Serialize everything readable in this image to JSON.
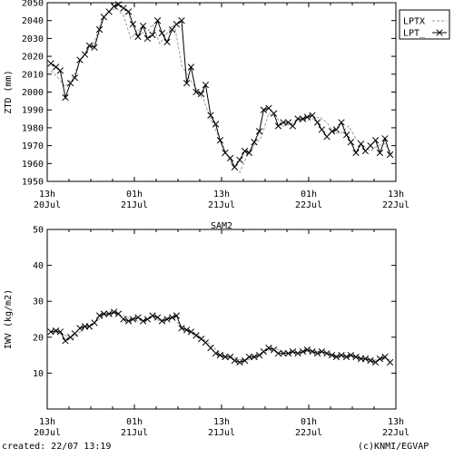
{
  "footer": {
    "created": "created: 22/07 13:19",
    "credit": "(c)KNMI/EGVAP"
  },
  "chart_data": [
    {
      "type": "line",
      "title": "",
      "xlabel": "",
      "ylabel": "ZTD (mm)",
      "xlim": [
        0,
        48
      ],
      "ylim": [
        1950,
        2050
      ],
      "yticks": [
        1950,
        1960,
        1970,
        1980,
        1990,
        2000,
        2010,
        2020,
        2030,
        2040,
        2050
      ],
      "xticks": [
        {
          "x": 0,
          "top": "13h",
          "bottom": "20Jul"
        },
        {
          "x": 12,
          "top": "01h",
          "bottom": "21Jul"
        },
        {
          "x": 24,
          "top": "13h",
          "bottom": "21Jul"
        },
        {
          "x": 36,
          "top": "01h",
          "bottom": "22Jul"
        },
        {
          "x": 48,
          "top": "13h",
          "bottom": "22Jul"
        }
      ],
      "legend": "top-right",
      "series": [
        {
          "name": "LPTX",
          "style": "dashed",
          "x": [
            0.5,
            1.5,
            2.5,
            3.5,
            4.5,
            5.5,
            6.5,
            7.5,
            8.5,
            9.5,
            10.5,
            11.5,
            12.5,
            13.5,
            14.5,
            15.5,
            16.5,
            17.5,
            18.5,
            19.5,
            20.5,
            21.5,
            22.5,
            23.5,
            24.5,
            25.5,
            26.5,
            27.5,
            28.5,
            29.5,
            30.5,
            31.5,
            32.5,
            33.5,
            34.5,
            35.5,
            36.5,
            37.5,
            38.5,
            39.5,
            40.5,
            41.5,
            42.5,
            43.5,
            44.5,
            45.5,
            46.5,
            47.5
          ],
          "values": [
            2012,
            2008,
            2003,
            2008,
            2017,
            2023,
            2028,
            2040,
            2045,
            2047,
            2043,
            2030,
            2035,
            2032,
            2038,
            2027,
            2033,
            2038,
            2015,
            2008,
            2002,
            1996,
            1985,
            1976,
            1967,
            1959,
            1955,
            1964,
            1970,
            1975,
            1988,
            1986,
            1981,
            1982,
            1985,
            1984,
            1985,
            1986,
            1983,
            1977,
            1977,
            1981,
            1974,
            1970,
            1967,
            1970,
            1971,
            1965
          ]
        },
        {
          "name": "LPT_",
          "style": "solid-x",
          "x": [
            0.5,
            1.2,
            1.8,
            2.5,
            3.2,
            3.8,
            4.5,
            5.2,
            5.8,
            6.5,
            7.2,
            7.8,
            8.5,
            9.2,
            9.8,
            10.5,
            11.2,
            11.8,
            12.5,
            13.2,
            13.8,
            14.5,
            15.2,
            15.8,
            16.5,
            17.2,
            17.8,
            18.5,
            19.2,
            19.8,
            20.5,
            21.2,
            21.8,
            22.5,
            23.2,
            23.8,
            24.5,
            25.2,
            25.8,
            26.5,
            27.2,
            27.8,
            28.5,
            29.2,
            29.8,
            30.5,
            31.2,
            31.8,
            32.5,
            33.2,
            33.8,
            34.5,
            35.2,
            35.8,
            36.5,
            37.2,
            37.8,
            38.5,
            39.2,
            39.8,
            40.5,
            41.2,
            41.8,
            42.5,
            43.2,
            43.8,
            44.5,
            45.2,
            45.8,
            46.5,
            47.2
          ],
          "values": [
            2016,
            2014,
            2012,
            1997,
            2005,
            2008,
            2018,
            2021,
            2026,
            2025,
            2035,
            2042,
            2045,
            2048,
            2049,
            2047,
            2045,
            2038,
            2031,
            2037,
            2030,
            2032,
            2040,
            2033,
            2028,
            2035,
            2038,
            2040,
            2005,
            2014,
            2000,
            1999,
            2004,
            1987,
            1982,
            1973,
            1966,
            1963,
            1958,
            1962,
            1967,
            1966,
            1972,
            1978,
            1990,
            1991,
            1988,
            1981,
            1983,
            1983,
            1981,
            1985,
            1985,
            1986,
            1987,
            1983,
            1979,
            1975,
            1978,
            1979,
            1983,
            1976,
            1972,
            1966,
            1971,
            1967,
            1970,
            1973,
            1966,
            1974,
            1965
          ]
        }
      ]
    },
    {
      "type": "line",
      "title": "SAM2",
      "xlabel": "",
      "ylabel": "IWV (kg/m2)",
      "xlim": [
        0,
        48
      ],
      "ylim": [
        0,
        50
      ],
      "yticks": [
        10,
        20,
        30,
        40,
        50
      ],
      "xticks": [
        {
          "x": 0,
          "top": "13h",
          "bottom": "20Jul"
        },
        {
          "x": 12,
          "top": "01h",
          "bottom": "21Jul"
        },
        {
          "x": 24,
          "top": "13h",
          "bottom": "21Jul"
        },
        {
          "x": 36,
          "top": "01h",
          "bottom": "22Jul"
        },
        {
          "x": 48,
          "top": "13h",
          "bottom": "22Jul"
        }
      ],
      "series": [
        {
          "name": "",
          "style": "dashed",
          "x": [
            0.5,
            1.5,
            2.5,
            3.5,
            4.5,
            5.5,
            6.5,
            7.5,
            8.5,
            9.5,
            10.5,
            11.5,
            12.5,
            13.5,
            14.5,
            15.5,
            16.5,
            17.5,
            18.5,
            19.5,
            20.5,
            21.5,
            22.5,
            23.5,
            24.5,
            25.5,
            26.5,
            27.5,
            28.5,
            29.5,
            30.5,
            31.5,
            32.5,
            33.5,
            34.5,
            35.5,
            36.5,
            37.5,
            38.5,
            39.5,
            40.5,
            41.5,
            42.5,
            43.5,
            44.5,
            45.5,
            46.5,
            47.5
          ],
          "values": [
            21.5,
            21.2,
            20.5,
            19.5,
            21.5,
            23,
            24,
            25.5,
            26.5,
            26.5,
            26,
            25,
            24.5,
            25,
            25.5,
            24.5,
            25.5,
            25,
            23,
            22,
            21,
            19.5,
            18,
            16,
            15.2,
            14.5,
            13.8,
            13.5,
            14.5,
            15,
            16.5,
            16.8,
            16,
            15.5,
            15.8,
            16,
            16.2,
            16,
            15.5,
            15,
            14.8,
            15,
            14.5,
            14,
            14,
            13.5,
            14,
            13.5
          ]
        },
        {
          "name": "",
          "style": "solid-x",
          "x": [
            0.5,
            1.2,
            1.8,
            2.5,
            3.2,
            3.8,
            4.5,
            5.2,
            5.8,
            6.5,
            7.2,
            7.8,
            8.5,
            9.2,
            9.8,
            10.5,
            11.2,
            11.8,
            12.5,
            13.2,
            13.8,
            14.5,
            15.2,
            15.8,
            16.5,
            17.2,
            17.8,
            18.5,
            19.2,
            19.8,
            20.5,
            21.2,
            21.8,
            22.5,
            23.2,
            23.8,
            24.5,
            25.2,
            25.8,
            26.5,
            27.2,
            27.8,
            28.5,
            29.2,
            29.8,
            30.5,
            31.2,
            31.8,
            32.5,
            33.2,
            33.8,
            34.5,
            35.2,
            35.8,
            36.5,
            37.2,
            37.8,
            38.5,
            39.2,
            39.8,
            40.5,
            41.2,
            41.8,
            42.5,
            43.2,
            43.8,
            44.5,
            45.2,
            45.8,
            46.5,
            47.2
          ],
          "values": [
            21.5,
            21.8,
            21.5,
            19,
            20,
            21,
            22.5,
            23,
            23,
            24,
            26,
            26.5,
            26.5,
            27,
            26.5,
            25,
            24.5,
            25,
            25.5,
            24.5,
            25,
            26,
            25.5,
            24.5,
            25,
            25.5,
            26,
            22.5,
            22,
            21.5,
            20.5,
            19.5,
            18.5,
            17,
            15.5,
            15,
            14.5,
            14.5,
            13.5,
            13,
            13.5,
            14.5,
            14.5,
            15,
            16,
            17,
            16.5,
            15.5,
            15.5,
            15.5,
            16,
            15.5,
            16,
            16.5,
            16,
            15.5,
            16,
            15.5,
            15,
            14.5,
            15,
            14.5,
            15,
            14.5,
            14,
            14,
            13.5,
            13,
            14,
            14.5,
            13
          ]
        }
      ]
    }
  ]
}
